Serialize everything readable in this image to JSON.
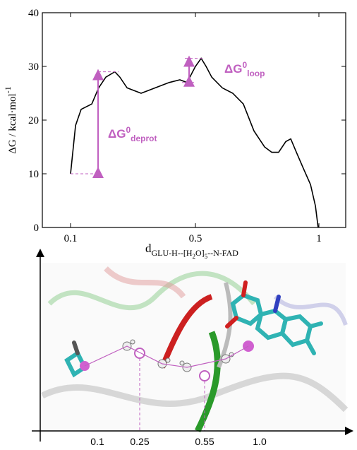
{
  "chart_data": {
    "type": "line",
    "ylabel": {
      "text": "ΔG / kcal·mol",
      "sup": "-1"
    },
    "xlabel": [
      {
        "text": "d",
        "level": 0
      },
      {
        "text": "GLU-H--[H",
        "level": 1
      },
      {
        "text": "2",
        "level": 2
      },
      {
        "text": "O]",
        "level": 1
      },
      {
        "text": "5",
        "level": 2
      },
      {
        "text": "--N-FAD",
        "level": 1
      }
    ],
    "x": [
      0.1,
      0.116,
      0.134,
      0.168,
      0.19,
      0.213,
      0.242,
      0.258,
      0.281,
      0.326,
      0.371,
      0.416,
      0.45,
      0.473,
      0.5,
      0.523,
      0.543,
      0.566,
      0.609,
      0.651,
      0.694,
      0.737,
      0.78,
      0.809,
      0.837,
      0.866,
      0.886,
      0.909,
      0.937,
      0.966,
      0.986,
      0.997
    ],
    "series": [
      {
        "color": "#000000",
        "values": [
          10,
          19,
          22,
          23,
          26,
          28,
          29,
          28,
          26,
          25,
          26,
          27,
          27.5,
          27,
          30,
          31.5,
          30,
          28,
          26,
          25,
          23,
          18,
          15,
          14,
          14,
          16,
          16.5,
          14,
          11,
          8,
          4,
          0
        ]
      }
    ],
    "xlim": [
      0.01,
      1.11
    ],
    "xticks": [
      0.1,
      0.5,
      1
    ],
    "ylim": [
      0,
      40
    ],
    "yticks": [
      0,
      10,
      20,
      30,
      40
    ],
    "annotations": [
      {
        "parts": [
          {
            "text": "ΔG",
            "level": 0
          },
          {
            "text": "0",
            "level": -1
          },
          {
            "text": "deprot",
            "level": 1
          }
        ]
      },
      {
        "parts": [
          {
            "text": "ΔG",
            "level": 0
          },
          {
            "text": "0",
            "level": -1
          },
          {
            "text": "loop",
            "level": 1
          }
        ]
      }
    ]
  },
  "figure_b": {
    "axis_labels": [
      "0.1",
      "0.25",
      "0.55",
      "1.0"
    ]
  }
}
